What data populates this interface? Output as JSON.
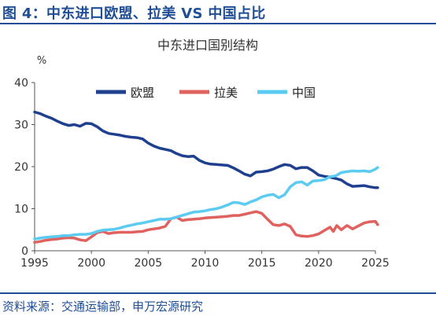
{
  "figure": {
    "title": "图 4：中东进口欧盟、拉美 VS 中国占比",
    "source": "资料来源：交通运输部，申万宏源研究"
  },
  "chart_data": {
    "type": "line",
    "title": "中东进口国别结构",
    "ylabel": "%",
    "xlabel": "",
    "xlim": [
      1995,
      2025
    ],
    "ylim": [
      0,
      40
    ],
    "x_ticks": [
      1995,
      2000,
      2005,
      2010,
      2015,
      2020,
      2025
    ],
    "y_ticks": [
      0,
      10,
      20,
      30,
      40
    ],
    "grid": false,
    "legend_position": "top-center",
    "series": [
      {
        "name": "欧盟",
        "color": "#1f3f8f",
        "points": [
          [
            1995.0,
            33
          ],
          [
            1995.5,
            32.6
          ],
          [
            1996.0,
            32
          ],
          [
            1996.5,
            31.5
          ],
          [
            1997.0,
            30.8
          ],
          [
            1997.5,
            30.2
          ],
          [
            1998.0,
            29.8
          ],
          [
            1998.5,
            30.0
          ],
          [
            1999.0,
            29.6
          ],
          [
            1999.5,
            30.3
          ],
          [
            2000.0,
            30.2
          ],
          [
            2000.5,
            29.5
          ],
          [
            2001.0,
            28.5
          ],
          [
            2001.5,
            27.9
          ],
          [
            2002.0,
            27.7
          ],
          [
            2002.5,
            27.5
          ],
          [
            2003.0,
            27.2
          ],
          [
            2003.5,
            27.0
          ],
          [
            2004.0,
            26.9
          ],
          [
            2004.5,
            26.6
          ],
          [
            2005.0,
            25.6
          ],
          [
            2005.5,
            24.9
          ],
          [
            2006.0,
            24.4
          ],
          [
            2006.5,
            24.1
          ],
          [
            2007.0,
            23.8
          ],
          [
            2007.5,
            23.1
          ],
          [
            2008.0,
            22.6
          ],
          [
            2008.5,
            22.4
          ],
          [
            2009.0,
            22.5
          ],
          [
            2009.5,
            21.5
          ],
          [
            2010.0,
            20.9
          ],
          [
            2010.5,
            20.6
          ],
          [
            2011.0,
            20.5
          ],
          [
            2011.5,
            20.4
          ],
          [
            2012.0,
            20.3
          ],
          [
            2012.5,
            19.7
          ],
          [
            2013.0,
            19.0
          ],
          [
            2013.5,
            18.2
          ],
          [
            2014.0,
            17.8
          ],
          [
            2014.5,
            18.7
          ],
          [
            2015.0,
            18.8
          ],
          [
            2015.5,
            19.0
          ],
          [
            2016.0,
            19.4
          ],
          [
            2016.5,
            20.0
          ],
          [
            2017.0,
            20.5
          ],
          [
            2017.5,
            20.3
          ],
          [
            2018.0,
            19.5
          ],
          [
            2018.5,
            19.8
          ],
          [
            2019.0,
            19.8
          ],
          [
            2019.5,
            19.0
          ],
          [
            2020.0,
            18.0
          ],
          [
            2020.5,
            17.7
          ],
          [
            2021.0,
            17.5
          ],
          [
            2021.5,
            17.2
          ],
          [
            2022.0,
            16.8
          ],
          [
            2022.5,
            15.9
          ],
          [
            2023.0,
            15.3
          ],
          [
            2023.5,
            15.4
          ],
          [
            2024.0,
            15.5
          ],
          [
            2024.5,
            15.2
          ],
          [
            2025.0,
            15.0
          ],
          [
            2025.2,
            15.0
          ]
        ]
      },
      {
        "name": "拉美",
        "color": "#e0625f",
        "points": [
          [
            1995.0,
            2.0
          ],
          [
            1995.5,
            2.2
          ],
          [
            1996.0,
            2.5
          ],
          [
            1996.5,
            2.7
          ],
          [
            1997.0,
            2.8
          ],
          [
            1997.5,
            3.0
          ],
          [
            1998.0,
            3.1
          ],
          [
            1998.5,
            3.0
          ],
          [
            1999.0,
            2.6
          ],
          [
            1999.5,
            2.4
          ],
          [
            2000.0,
            3.3
          ],
          [
            2000.5,
            4.3
          ],
          [
            2001.0,
            4.6
          ],
          [
            2001.5,
            4.1
          ],
          [
            2002.0,
            4.3
          ],
          [
            2002.5,
            4.4
          ],
          [
            2003.0,
            4.4
          ],
          [
            2003.5,
            4.4
          ],
          [
            2004.0,
            4.5
          ],
          [
            2004.5,
            4.6
          ],
          [
            2005.0,
            5.0
          ],
          [
            2005.5,
            5.2
          ],
          [
            2006.0,
            5.4
          ],
          [
            2006.5,
            5.8
          ],
          [
            2007.0,
            7.6
          ],
          [
            2007.5,
            8.0
          ],
          [
            2008.0,
            7.2
          ],
          [
            2008.5,
            7.4
          ],
          [
            2009.0,
            7.5
          ],
          [
            2009.5,
            7.6
          ],
          [
            2010.0,
            7.8
          ],
          [
            2010.5,
            7.9
          ],
          [
            2011.0,
            8.0
          ],
          [
            2011.5,
            8.1
          ],
          [
            2012.0,
            8.2
          ],
          [
            2012.5,
            8.4
          ],
          [
            2013.0,
            8.4
          ],
          [
            2013.5,
            8.7
          ],
          [
            2014.0,
            9.0
          ],
          [
            2014.5,
            9.3
          ],
          [
            2015.0,
            8.9
          ],
          [
            2015.5,
            7.5
          ],
          [
            2016.0,
            6.2
          ],
          [
            2016.5,
            6.0
          ],
          [
            2017.0,
            6.4
          ],
          [
            2017.5,
            5.8
          ],
          [
            2018.0,
            3.8
          ],
          [
            2018.5,
            3.5
          ],
          [
            2019.0,
            3.4
          ],
          [
            2019.5,
            3.6
          ],
          [
            2020.0,
            4.0
          ],
          [
            2020.5,
            4.8
          ],
          [
            2021.0,
            5.6
          ],
          [
            2021.3,
            4.6
          ],
          [
            2021.6,
            6.0
          ],
          [
            2022.0,
            5.0
          ],
          [
            2022.5,
            6.0
          ],
          [
            2023.0,
            5.2
          ],
          [
            2023.5,
            5.9
          ],
          [
            2024.0,
            6.6
          ],
          [
            2024.5,
            6.9
          ],
          [
            2025.0,
            7.0
          ],
          [
            2025.2,
            6.2
          ]
        ]
      },
      {
        "name": "中国",
        "color": "#5ccbf2",
        "points": [
          [
            1995.0,
            2.8
          ],
          [
            1995.5,
            3.0
          ],
          [
            1996.0,
            3.2
          ],
          [
            1996.5,
            3.3
          ],
          [
            1997.0,
            3.4
          ],
          [
            1997.5,
            3.6
          ],
          [
            1998.0,
            3.6
          ],
          [
            1998.5,
            3.8
          ],
          [
            1999.0,
            3.9
          ],
          [
            1999.5,
            3.9
          ],
          [
            2000.0,
            4.1
          ],
          [
            2000.5,
            4.6
          ],
          [
            2001.0,
            4.9
          ],
          [
            2001.5,
            5.0
          ],
          [
            2002.0,
            5.1
          ],
          [
            2002.5,
            5.4
          ],
          [
            2003.0,
            5.8
          ],
          [
            2003.5,
            6.1
          ],
          [
            2004.0,
            6.4
          ],
          [
            2004.5,
            6.6
          ],
          [
            2005.0,
            6.9
          ],
          [
            2005.5,
            7.2
          ],
          [
            2006.0,
            7.5
          ],
          [
            2006.5,
            7.5
          ],
          [
            2007.0,
            7.6
          ],
          [
            2007.5,
            8.0
          ],
          [
            2008.0,
            8.4
          ],
          [
            2008.5,
            8.8
          ],
          [
            2009.0,
            9.2
          ],
          [
            2009.5,
            9.3
          ],
          [
            2010.0,
            9.5
          ],
          [
            2010.5,
            9.8
          ],
          [
            2011.0,
            10.0
          ],
          [
            2011.5,
            10.4
          ],
          [
            2012.0,
            10.9
          ],
          [
            2012.5,
            11.5
          ],
          [
            2013.0,
            11.4
          ],
          [
            2013.5,
            11.0
          ],
          [
            2014.0,
            11.6
          ],
          [
            2014.5,
            12.1
          ],
          [
            2015.0,
            12.8
          ],
          [
            2015.5,
            13.2
          ],
          [
            2016.0,
            13.4
          ],
          [
            2016.5,
            12.6
          ],
          [
            2017.0,
            13.3
          ],
          [
            2017.5,
            15.2
          ],
          [
            2018.0,
            16.2
          ],
          [
            2018.5,
            16.4
          ],
          [
            2019.0,
            15.6
          ],
          [
            2019.5,
            16.6
          ],
          [
            2020.0,
            16.7
          ],
          [
            2020.5,
            16.9
          ],
          [
            2021.0,
            17.6
          ],
          [
            2021.5,
            17.8
          ],
          [
            2022.0,
            18.6
          ],
          [
            2022.5,
            18.8
          ],
          [
            2023.0,
            19.0
          ],
          [
            2023.5,
            18.9
          ],
          [
            2024.0,
            19.0
          ],
          [
            2024.5,
            18.8
          ],
          [
            2025.0,
            19.4
          ],
          [
            2025.2,
            19.8
          ]
        ]
      }
    ]
  }
}
